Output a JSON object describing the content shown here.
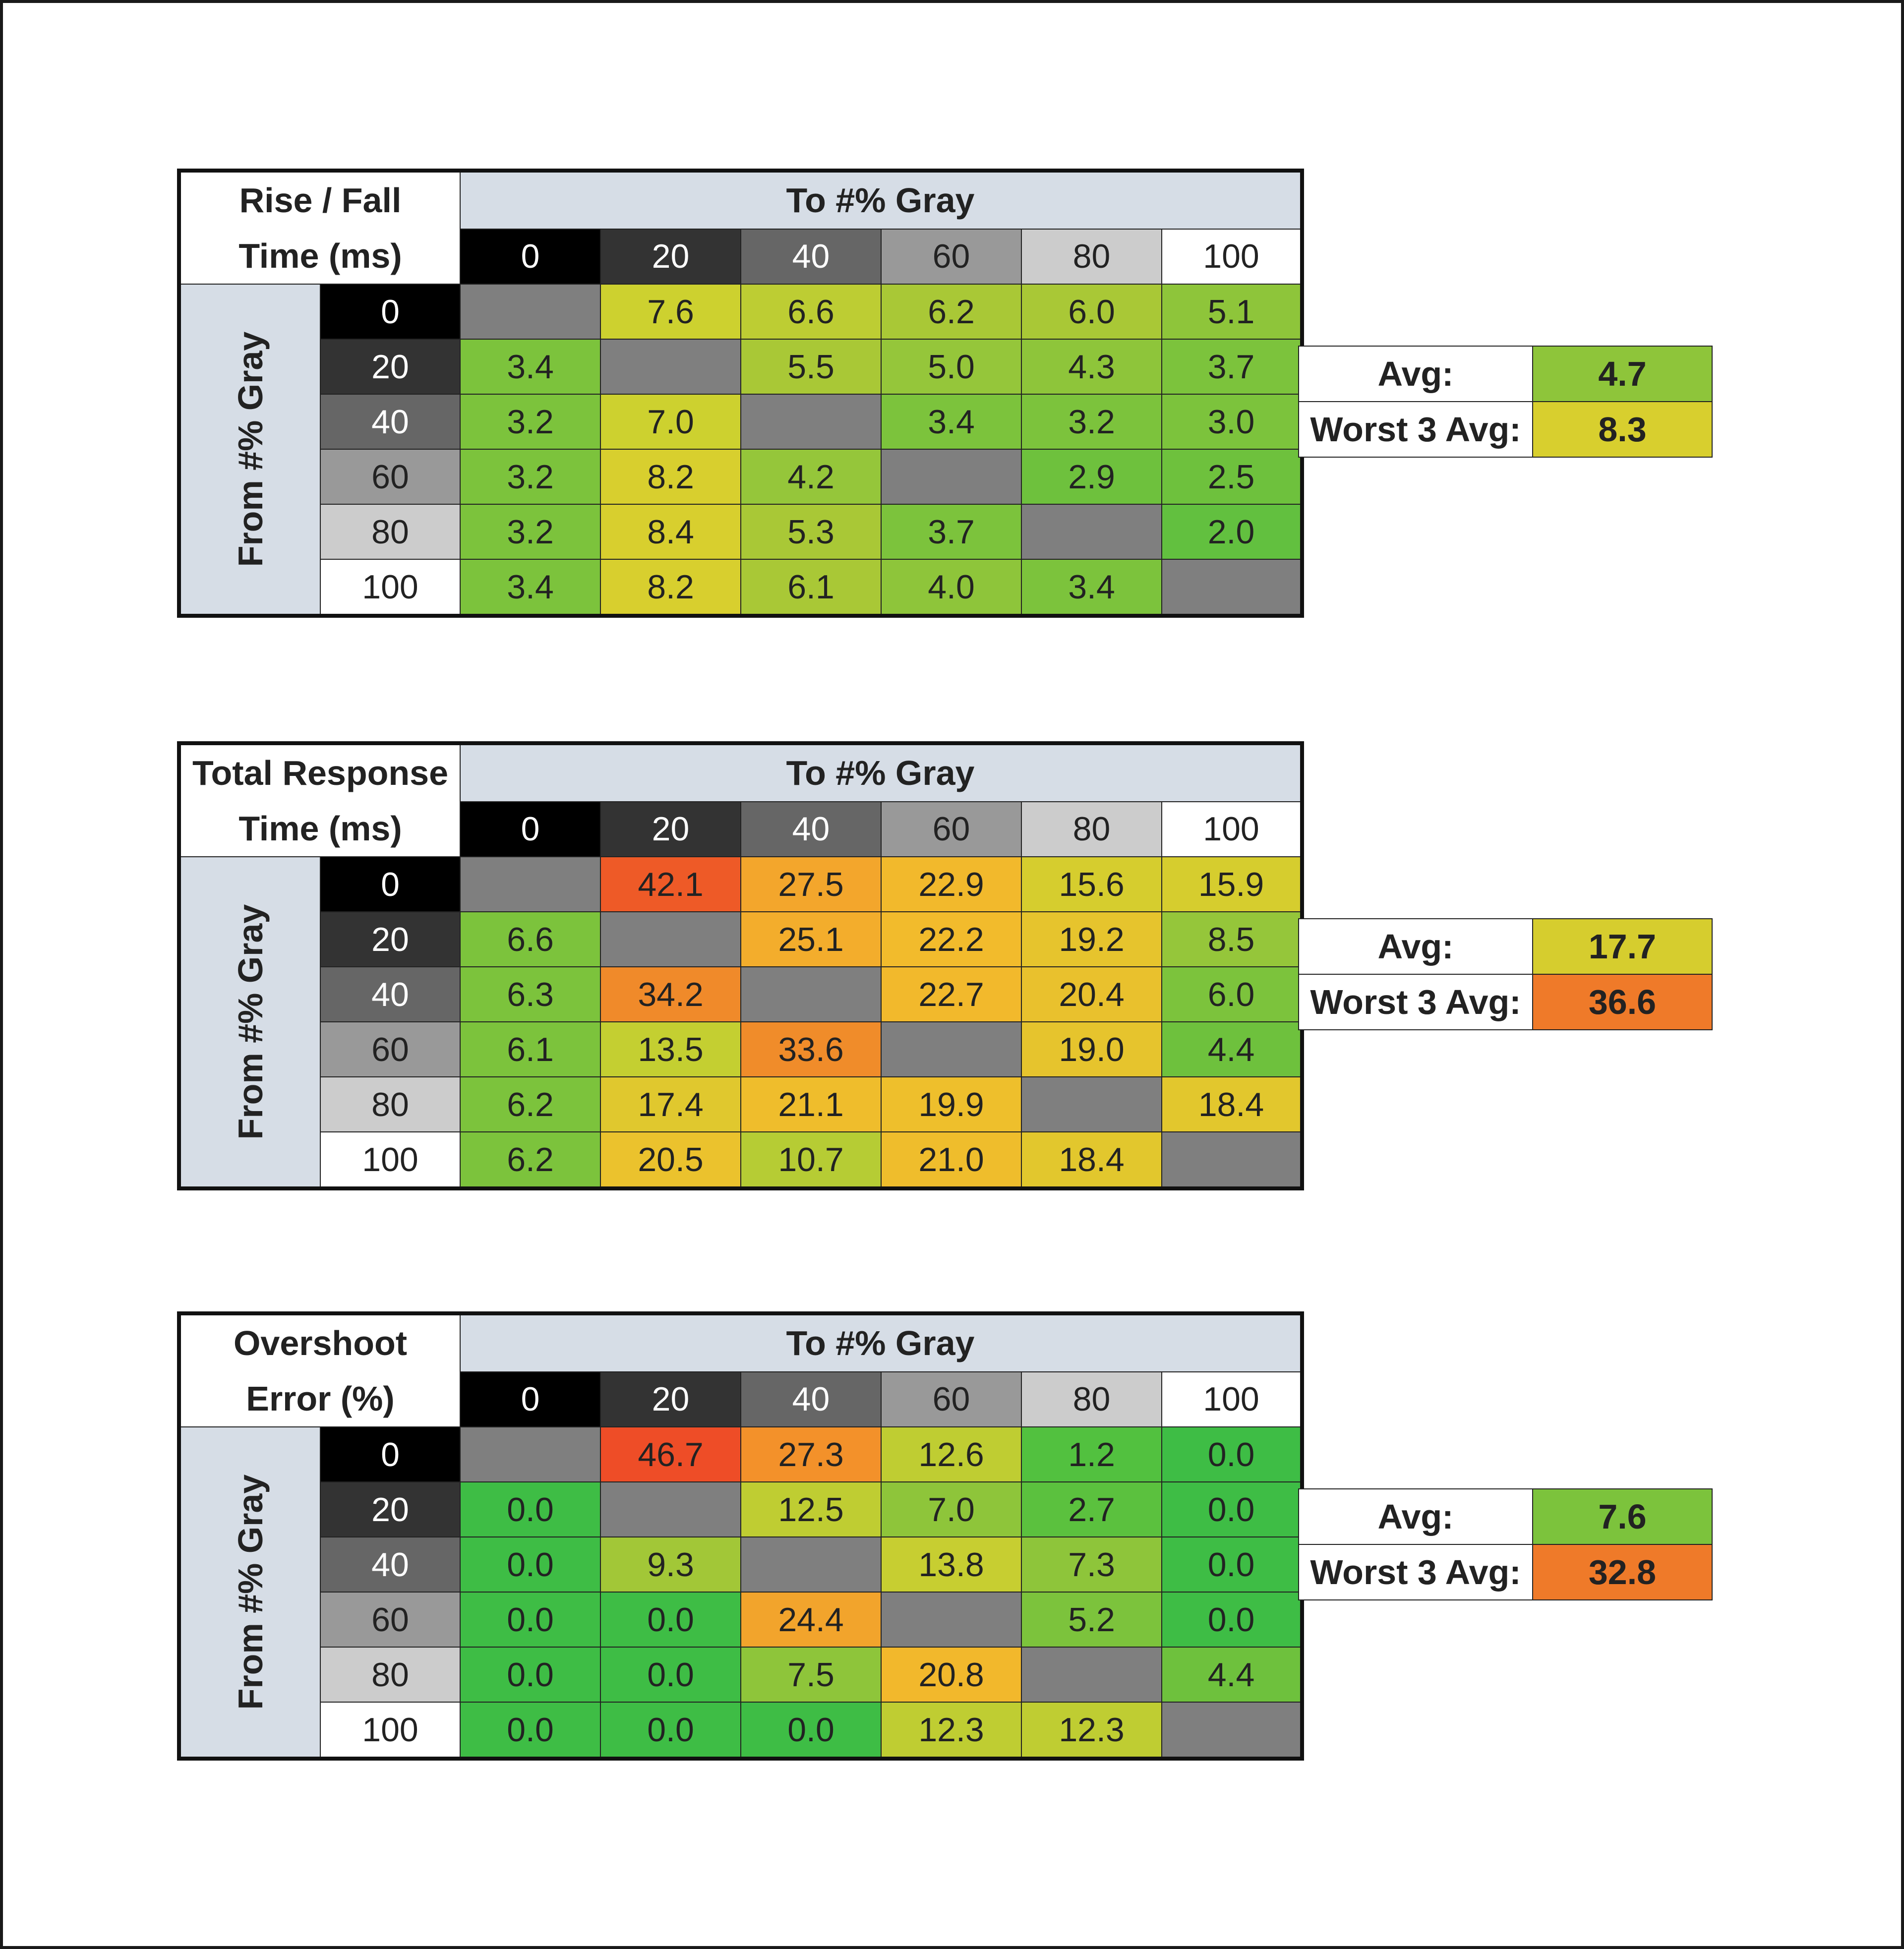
{
  "colors": {
    "header_bg": "#d6dde6",
    "diagonal": "#7f7f7f",
    "gray_levels": {
      "0": {
        "bg": "#000000",
        "fg": "#ffffff"
      },
      "20": {
        "bg": "#333333",
        "fg": "#ffffff"
      },
      "40": {
        "bg": "#666666",
        "fg": "#ffffff"
      },
      "60": {
        "bg": "#999999",
        "fg": "#222222"
      },
      "80": {
        "bg": "#cccccc",
        "fg": "#222222"
      },
      "100": {
        "bg": "#ffffff",
        "fg": "#222222"
      }
    }
  },
  "chart_data": [
    {
      "type": "table",
      "title_line1": "Rise / Fall",
      "title_line2": "Time (ms)",
      "column_header": "To #% Gray",
      "row_header": "From #% Gray",
      "levels": [
        "0",
        "20",
        "40",
        "60",
        "80",
        "100"
      ],
      "rows": [
        [
          null,
          7.6,
          6.6,
          6.2,
          6.0,
          5.1
        ],
        [
          3.4,
          null,
          5.5,
          5.0,
          4.3,
          3.7
        ],
        [
          3.2,
          7.0,
          null,
          3.4,
          3.2,
          3.0
        ],
        [
          3.2,
          8.2,
          4.2,
          null,
          2.9,
          2.5
        ],
        [
          3.2,
          8.4,
          5.3,
          3.7,
          null,
          2.0
        ],
        [
          3.4,
          8.2,
          6.1,
          4.0,
          3.4,
          null
        ]
      ],
      "colors": [
        [
          null,
          "#cdd12f",
          "#bdcd33",
          "#a9c836",
          "#a9c836",
          "#8ec53a"
        ],
        [
          "#7cc33c",
          null,
          "#a9c836",
          "#95c63a",
          "#8ec53a",
          "#7cc33c"
        ],
        [
          "#7cc33c",
          "#cdd12f",
          null,
          "#7cc33c",
          "#7cc33c",
          "#7cc33c"
        ],
        [
          "#7cc33c",
          "#d8cf2e",
          "#95c63a",
          null,
          "#6ec13d",
          "#6ec13d"
        ],
        [
          "#7cc33c",
          "#d8cf2e",
          "#a9c836",
          "#7cc33c",
          null,
          "#62c03f"
        ],
        [
          "#7cc33c",
          "#d8cf2e",
          "#a9c836",
          "#8ec53a",
          "#7cc33c",
          null
        ]
      ],
      "avg_label": "Avg:",
      "avg_value": "4.7",
      "avg_color": "#8ec53a",
      "worst_label": "Worst 3 Avg:",
      "worst_value": "8.3",
      "worst_color": "#d8cf2e"
    },
    {
      "type": "table",
      "title_line1": "Total Response",
      "title_line2": "Time (ms)",
      "column_header": "To #% Gray",
      "row_header": "From #% Gray",
      "levels": [
        "0",
        "20",
        "40",
        "60",
        "80",
        "100"
      ],
      "rows": [
        [
          null,
          42.1,
          27.5,
          22.9,
          15.6,
          15.9
        ],
        [
          6.6,
          null,
          25.1,
          22.2,
          19.2,
          8.5
        ],
        [
          6.3,
          34.2,
          null,
          22.7,
          20.4,
          6.0
        ],
        [
          6.1,
          13.5,
          33.6,
          null,
          19.0,
          4.4
        ],
        [
          6.2,
          17.4,
          21.1,
          19.9,
          null,
          18.4
        ],
        [
          6.2,
          20.5,
          10.7,
          21.0,
          18.4,
          null
        ]
      ],
      "colors": [
        [
          null,
          "#ee5a27",
          "#f3a62c",
          "#f2b92c",
          "#d6cd2e",
          "#d6cd2e"
        ],
        [
          "#7cc33c",
          null,
          "#f3ad2c",
          "#f2bb2c",
          "#e6c42d",
          "#95c63a"
        ],
        [
          "#7cc33c",
          "#f08a2a",
          null,
          "#f2b92c",
          "#e9c12d",
          "#7cc33c"
        ],
        [
          "#7cc33c",
          "#c4cf31",
          "#f08c2a",
          null,
          "#e6c42d",
          "#6ec13d"
        ],
        [
          "#7cc33c",
          "#e0c82e",
          "#efbd2c",
          "#eebf2c",
          null,
          "#e2c72d"
        ],
        [
          "#7cc33c",
          "#ebc22d",
          "#b6cc34",
          "#efbd2c",
          "#e2c72d",
          null
        ]
      ],
      "avg_label": "Avg:",
      "avg_value": "17.7",
      "avg_color": "#d6cd2e",
      "worst_label": "Worst 3 Avg:",
      "worst_value": "36.6",
      "worst_color": "#ef7a29"
    },
    {
      "type": "table",
      "title_line1": "Overshoot",
      "title_line2": "Error (%)",
      "column_header": "To #% Gray",
      "row_header": "From #% Gray",
      "levels": [
        "0",
        "20",
        "40",
        "60",
        "80",
        "100"
      ],
      "rows": [
        [
          null,
          46.7,
          27.3,
          12.6,
          1.2,
          0.0
        ],
        [
          0.0,
          null,
          12.5,
          7.0,
          2.7,
          0.0
        ],
        [
          0.0,
          9.3,
          null,
          13.8,
          7.3,
          0.0
        ],
        [
          0.0,
          0.0,
          24.4,
          null,
          5.2,
          0.0
        ],
        [
          0.0,
          0.0,
          7.5,
          20.8,
          null,
          4.4
        ],
        [
          0.0,
          0.0,
          0.0,
          12.3,
          12.3,
          null
        ]
      ],
      "colors": [
        [
          null,
          "#ee4d27",
          "#f3912a",
          "#bfcd32",
          "#52c13f",
          "#3ebd45"
        ],
        [
          "#3ebd45",
          null,
          "#bfcd32",
          "#8ec53a",
          "#5bc13e",
          "#3ebd45"
        ],
        [
          "#3ebd45",
          "#a2c737",
          null,
          "#c7ce31",
          "#8ec53a",
          "#3ebd45"
        ],
        [
          "#3ebd45",
          "#3ebd45",
          "#f2a42c",
          null,
          "#7cc33c",
          "#3ebd45"
        ],
        [
          "#3ebd45",
          "#3ebd45",
          "#8ec53a",
          "#f2b82c",
          null,
          "#6ec13d"
        ],
        [
          "#3ebd45",
          "#3ebd45",
          "#3ebd45",
          "#bfcd32",
          "#bfcd32",
          null
        ]
      ],
      "avg_label": "Avg:",
      "avg_value": "7.6",
      "avg_color": "#7cc33c",
      "worst_label": "Worst 3 Avg:",
      "worst_value": "32.8",
      "worst_color": "#ef7a29"
    }
  ]
}
